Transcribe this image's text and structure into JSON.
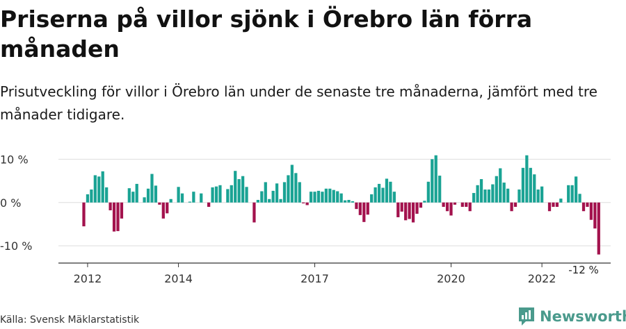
{
  "title": "Priserna på villor sjönk i Örebro län förra månaden",
  "subtitle": "Prisutveckling för villor i Örebro län under de senaste tre månaderna, jämfört med tre månader tidigare.",
  "source": "Källa: Svensk Mäklarstatistik",
  "brand": {
    "name": "Newsworthy",
    "logo_icon": "newsworthy-logo-icon"
  },
  "colors": {
    "positive": "#1aa394",
    "negative": "#a3124d",
    "grid": "#dddddd",
    "axis": "#333333"
  },
  "chart_data": {
    "type": "bar",
    "x_start": "2011-12",
    "x_end": "2022-12",
    "ylim": [
      -13.5,
      11.5
    ],
    "grid": true,
    "y_ticks": [
      {
        "value": 10,
        "label": "10 %"
      },
      {
        "value": 0,
        "label": "0 %"
      },
      {
        "value": -10,
        "label": "-10 %"
      }
    ],
    "x_ticks": [
      {
        "date": "2012-01",
        "label": "2012"
      },
      {
        "date": "2014-01",
        "label": "2014"
      },
      {
        "date": "2017-01",
        "label": "2017"
      },
      {
        "date": "2020-01",
        "label": "2020"
      },
      {
        "date": "2022-01",
        "label": "2022"
      }
    ],
    "annotations": [
      {
        "date": "2022-12",
        "label": "-12 %"
      }
    ],
    "series": [
      {
        "start": "2011-12",
        "values": [
          -5.5,
          1.9,
          3.0,
          6.3,
          6.0,
          7.2,
          3.5,
          -1.8,
          -6.7,
          -6.6,
          -3.7,
          0.0,
          3.3,
          2.5,
          4.3,
          0.0,
          1.2,
          3.2,
          6.6,
          3.9,
          -0.5,
          -3.7,
          -2.5,
          0.8,
          0.0,
          3.6,
          2.1,
          0.0,
          0.2,
          2.5,
          0.0,
          2.1,
          0.0,
          -1.0,
          3.5,
          3.7,
          4.0,
          0.0,
          3.1,
          4.0,
          7.3,
          5.4,
          6.1,
          3.6,
          0.0,
          -4.6,
          0.6,
          2.6,
          4.7,
          0.8,
          2.7,
          4.4,
          0.8,
          4.7,
          6.3,
          8.7,
          6.8,
          4.7,
          -0.2,
          -0.6,
          2.5,
          2.5,
          2.7,
          2.5,
          3.2,
          3.2,
          2.9,
          2.6,
          2.1,
          0.5,
          0.6,
          0.3,
          -1.5,
          -2.9,
          -4.5,
          -2.8,
          1.9,
          3.5,
          4.3,
          3.4,
          5.5,
          4.8,
          2.5,
          -3.4,
          -2.1,
          -4.1,
          -3.8,
          -4.6,
          -2.6,
          -1.2,
          0.4,
          4.8,
          10.0,
          10.9,
          6.2,
          -1.0,
          -2.0,
          -3.0,
          -0.5,
          0.0,
          -1.0,
          -1.0,
          -2.0,
          2.2,
          4.0,
          5.4,
          3.0,
          3.0,
          4.2,
          6.1,
          7.9,
          4.6,
          3.2,
          -2.0,
          -1.0,
          3.0,
          8.0,
          10.9,
          8.0,
          6.5,
          3.0,
          3.7,
          0.0,
          -2.0,
          -1.0,
          -1.0,
          0.9,
          0.0,
          4.0,
          4.0,
          6.0,
          2.0,
          -2.0,
          -1.0,
          -4.0,
          -6.0,
          -12.0
        ]
      }
    ]
  }
}
